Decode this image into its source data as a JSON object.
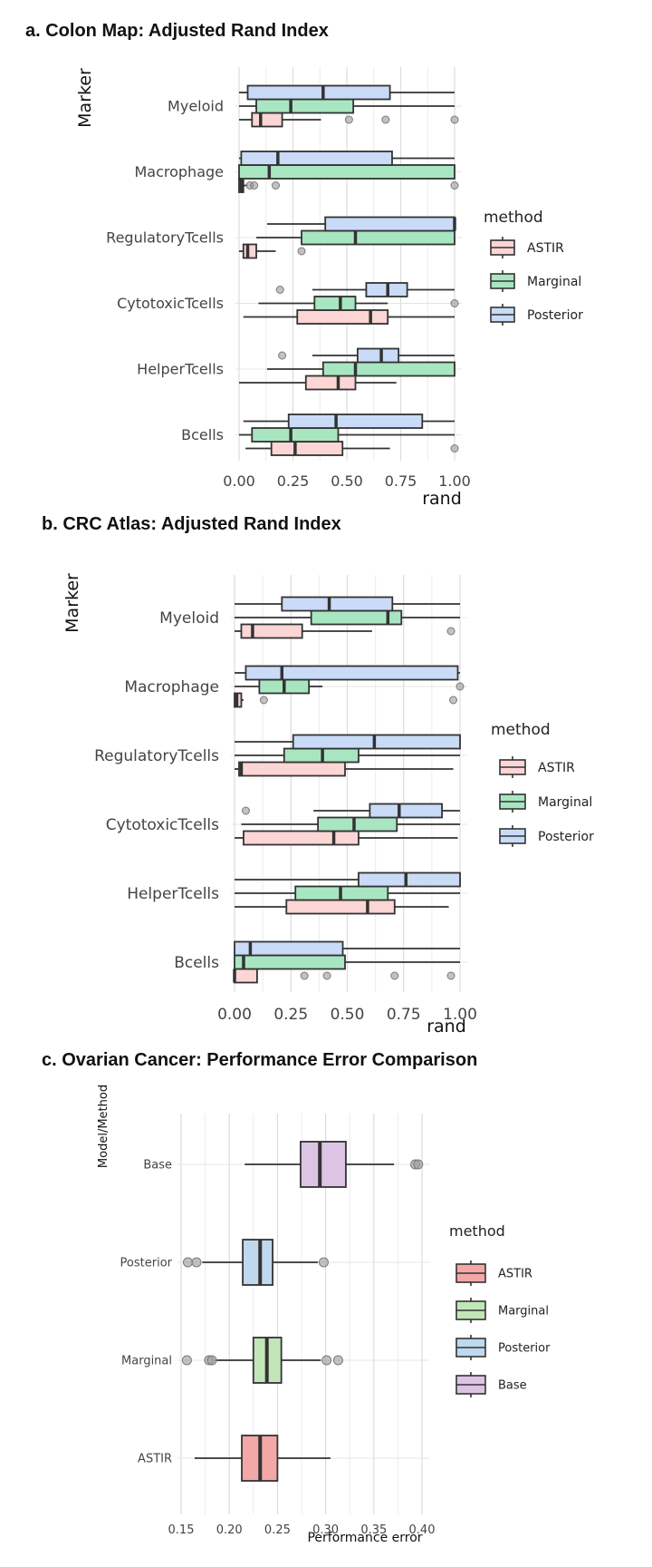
{
  "chart_data": [
    {
      "type": "box",
      "title": "a.  Colon Map: Adjusted Rand Index",
      "xlabel": "rand",
      "ylabel": "Marker",
      "xlim": [
        0,
        1
      ],
      "xticks": [
        "0.00",
        "0.25",
        "0.50",
        "0.75",
        "1.00"
      ],
      "xtick_values": [
        0,
        0.25,
        0.5,
        0.75,
        1
      ],
      "categories": [
        "Myeloid",
        "Macrophage",
        "RegulatoryTcells",
        "CytotoxicTcells",
        "HelperTcells",
        "Bcells"
      ],
      "legend_title": "method",
      "legend_position": "right",
      "grid": true,
      "series": [
        {
          "name": "ASTIR",
          "color": "#fcd5d5",
          "boxes": [
            {
              "min": 0.0,
              "q1": 0.06,
              "median": 0.1,
              "q3": 0.2,
              "max": 0.38,
              "outliers": [
                0.51,
                0.68,
                1.0
              ]
            },
            {
              "min": 0.0,
              "q1": 0.0,
              "median": 0.01,
              "q3": 0.02,
              "max": 0.04,
              "outliers": [
                0.05,
                0.07,
                0.17,
                1.0
              ]
            },
            {
              "min": 0.0,
              "q1": 0.02,
              "median": 0.04,
              "q3": 0.08,
              "max": 0.17,
              "outliers": [
                0.29
              ]
            },
            {
              "min": 0.02,
              "q1": 0.27,
              "median": 0.61,
              "q3": 0.69,
              "max": 1.0,
              "outliers": []
            },
            {
              "min": 0.0,
              "q1": 0.31,
              "median": 0.46,
              "q3": 0.54,
              "max": 0.73,
              "outliers": []
            },
            {
              "min": 0.03,
              "q1": 0.15,
              "median": 0.26,
              "q3": 0.48,
              "max": 0.7,
              "outliers": [
                1.0
              ]
            }
          ]
        },
        {
          "name": "Marginal",
          "color": "#a8e6c1",
          "boxes": [
            {
              "min": 0.0,
              "q1": 0.08,
              "median": 0.24,
              "q3": 0.53,
              "max": 1.0,
              "outliers": []
            },
            {
              "min": 0.0,
              "q1": 0.0,
              "median": 0.14,
              "q3": 1.0,
              "max": 1.0,
              "outliers": []
            },
            {
              "min": 0.08,
              "q1": 0.29,
              "median": 0.54,
              "q3": 1.0,
              "max": 1.0,
              "outliers": []
            },
            {
              "min": 0.09,
              "q1": 0.35,
              "median": 0.47,
              "q3": 0.54,
              "max": 0.69,
              "outliers": [
                1.0
              ]
            },
            {
              "min": 0.13,
              "q1": 0.39,
              "median": 0.54,
              "q3": 1.0,
              "max": 1.0,
              "outliers": []
            },
            {
              "min": 0.0,
              "q1": 0.06,
              "median": 0.24,
              "q3": 0.46,
              "max": 1.0,
              "outliers": []
            }
          ]
        },
        {
          "name": "Posterior",
          "color": "#c9dbf7",
          "boxes": [
            {
              "min": 0.0,
              "q1": 0.04,
              "median": 0.39,
              "q3": 0.7,
              "max": 1.0,
              "outliers": []
            },
            {
              "min": 0.0,
              "q1": 0.01,
              "median": 0.18,
              "q3": 0.71,
              "max": 1.0,
              "outliers": []
            },
            {
              "min": 0.13,
              "q1": 0.4,
              "median": 1.0,
              "q3": 1.0,
              "max": 1.0,
              "outliers": []
            },
            {
              "min": 0.34,
              "q1": 0.59,
              "median": 0.69,
              "q3": 0.78,
              "max": 1.0,
              "outliers": [
                0.19
              ]
            },
            {
              "min": 0.34,
              "q1": 0.55,
              "median": 0.66,
              "q3": 0.74,
              "max": 1.0,
              "outliers": [
                0.2
              ]
            },
            {
              "min": 0.02,
              "q1": 0.23,
              "median": 0.45,
              "q3": 0.85,
              "max": 1.0,
              "outliers": []
            }
          ]
        }
      ]
    },
    {
      "type": "box",
      "title": "b. CRC Atlas: Adjusted Rand Index",
      "xlabel": "rand",
      "ylabel": "Marker",
      "xlim": [
        0,
        1
      ],
      "xticks": [
        "0.00",
        "0.25",
        "0.50",
        "0.75",
        "1.00"
      ],
      "xtick_values": [
        0,
        0.25,
        0.5,
        0.75,
        1
      ],
      "categories": [
        "Myeloid",
        "Macrophage",
        "RegulatoryTcells",
        "CytotoxicTcells",
        "HelperTcells",
        "Bcells"
      ],
      "legend_title": "method",
      "legend_position": "right",
      "grid": true,
      "series": [
        {
          "name": "ASTIR",
          "color": "#fcd5d5",
          "boxes": [
            {
              "min": 0.0,
              "q1": 0.03,
              "median": 0.08,
              "q3": 0.3,
              "max": 0.61,
              "outliers": [
                0.96
              ]
            },
            {
              "min": 0.0,
              "q1": 0.0,
              "median": 0.01,
              "q3": 0.03,
              "max": 0.04,
              "outliers": [
                0.13,
                0.97
              ]
            },
            {
              "min": 0.0,
              "q1": 0.02,
              "median": 0.03,
              "q3": 0.49,
              "max": 0.97,
              "outliers": []
            },
            {
              "min": 0.0,
              "q1": 0.04,
              "median": 0.44,
              "q3": 0.55,
              "max": 0.99,
              "outliers": []
            },
            {
              "min": 0.0,
              "q1": 0.23,
              "median": 0.59,
              "q3": 0.71,
              "max": 0.95,
              "outliers": []
            },
            {
              "min": 0.0,
              "q1": 0.0,
              "median": 0.0,
              "q3": 0.1,
              "max": 0.1,
              "outliers": [
                0.31,
                0.41,
                0.71,
                0.96
              ]
            }
          ]
        },
        {
          "name": "Marginal",
          "color": "#a8e6c1",
          "boxes": [
            {
              "min": 0.0,
              "q1": 0.34,
              "median": 0.68,
              "q3": 0.74,
              "max": 1.0,
              "outliers": []
            },
            {
              "min": 0.0,
              "q1": 0.11,
              "median": 0.22,
              "q3": 0.33,
              "max": 0.39,
              "outliers": [
                1.0
              ]
            },
            {
              "min": 0.0,
              "q1": 0.22,
              "median": 0.39,
              "q3": 0.55,
              "max": 1.0,
              "outliers": []
            },
            {
              "min": 0.03,
              "q1": 0.37,
              "median": 0.53,
              "q3": 0.72,
              "max": 1.0,
              "outliers": []
            },
            {
              "min": 0.0,
              "q1": 0.27,
              "median": 0.47,
              "q3": 0.68,
              "max": 1.0,
              "outliers": []
            },
            {
              "min": 0.0,
              "q1": 0.0,
              "median": 0.04,
              "q3": 0.49,
              "max": 1.0,
              "outliers": []
            }
          ]
        },
        {
          "name": "Posterior",
          "color": "#c9dbf7",
          "boxes": [
            {
              "min": 0.0,
              "q1": 0.21,
              "median": 0.42,
              "q3": 0.7,
              "max": 1.0,
              "outliers": []
            },
            {
              "min": 0.0,
              "q1": 0.05,
              "median": 0.21,
              "q3": 0.99,
              "max": 1.0,
              "outliers": []
            },
            {
              "min": 0.0,
              "q1": 0.26,
              "median": 0.62,
              "q3": 1.0,
              "max": 1.0,
              "outliers": []
            },
            {
              "min": 0.35,
              "q1": 0.6,
              "median": 0.73,
              "q3": 0.92,
              "max": 1.0,
              "outliers": [
                0.05
              ]
            },
            {
              "min": 0.0,
              "q1": 0.55,
              "median": 0.76,
              "q3": 1.0,
              "max": 1.0,
              "outliers": []
            },
            {
              "min": 0.0,
              "q1": 0.0,
              "median": 0.07,
              "q3": 0.48,
              "max": 1.0,
              "outliers": []
            }
          ]
        }
      ]
    },
    {
      "type": "box",
      "title": "c. Ovarian Cancer: Performance Error Comparison",
      "xlabel": "Performance error",
      "ylabel": "Model/Method",
      "xlim": [
        0.15,
        0.4
      ],
      "xticks": [
        "0.15",
        "0.20",
        "0.25",
        "0.30",
        "0.35",
        "0.40"
      ],
      "xtick_values": [
        0.15,
        0.2,
        0.25,
        0.3,
        0.35,
        0.4
      ],
      "categories": [
        "Base",
        "Posterior",
        "Marginal",
        "ASTIR"
      ],
      "legend_title": "method",
      "legend_position": "right",
      "grid": true,
      "series": [
        {
          "name": "ASTIR",
          "color": "#f4a7a7",
          "boxes": [
            {
              "category": "ASTIR",
              "min": 0.164,
              "q1": 0.213,
              "median": 0.232,
              "q3": 0.25,
              "max": 0.305,
              "outliers": []
            }
          ]
        },
        {
          "name": "Marginal",
          "color": "#c3e6b9",
          "boxes": [
            {
              "category": "Marginal",
              "min": 0.185,
              "q1": 0.225,
              "median": 0.239,
              "q3": 0.254,
              "max": 0.295,
              "outliers": [
                0.156,
                0.179,
                0.182,
                0.301,
                0.313
              ]
            }
          ]
        },
        {
          "name": "Posterior",
          "color": "#bfd8ee",
          "boxes": [
            {
              "category": "Posterior",
              "min": 0.172,
              "q1": 0.214,
              "median": 0.232,
              "q3": 0.245,
              "max": 0.292,
              "outliers": [
                0.157,
                0.166,
                0.298
              ]
            }
          ]
        },
        {
          "name": "Base",
          "color": "#ddc4e4",
          "boxes": [
            {
              "category": "Base",
              "min": 0.216,
              "q1": 0.274,
              "median": 0.294,
              "q3": 0.321,
              "max": 0.371,
              "outliers": [
                0.393,
                0.396
              ]
            }
          ]
        }
      ]
    }
  ]
}
